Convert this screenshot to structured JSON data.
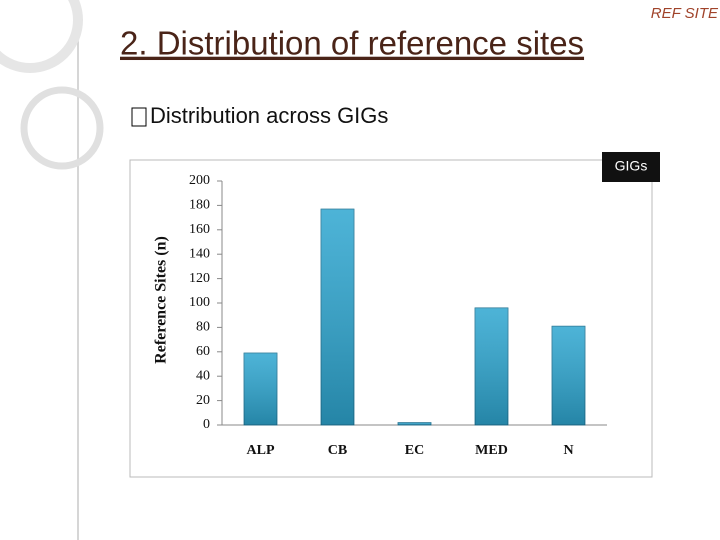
{
  "header": "REF SITE",
  "title": "2. Distribution of reference sites",
  "bullet": "Distribution across GIGs",
  "chart_data": {
    "type": "bar",
    "title": "GIGs",
    "y_label": "Reference Sites (n)",
    "categories": [
      "ALP",
      "CB",
      "EC",
      "MED",
      "N"
    ],
    "values": [
      59,
      177,
      2,
      96,
      81
    ],
    "color": "#2ea6d0",
    "ylim": [
      0,
      200
    ],
    "yticks": [
      0,
      20,
      40,
      60,
      80,
      100,
      120,
      140,
      160,
      180,
      200
    ]
  }
}
